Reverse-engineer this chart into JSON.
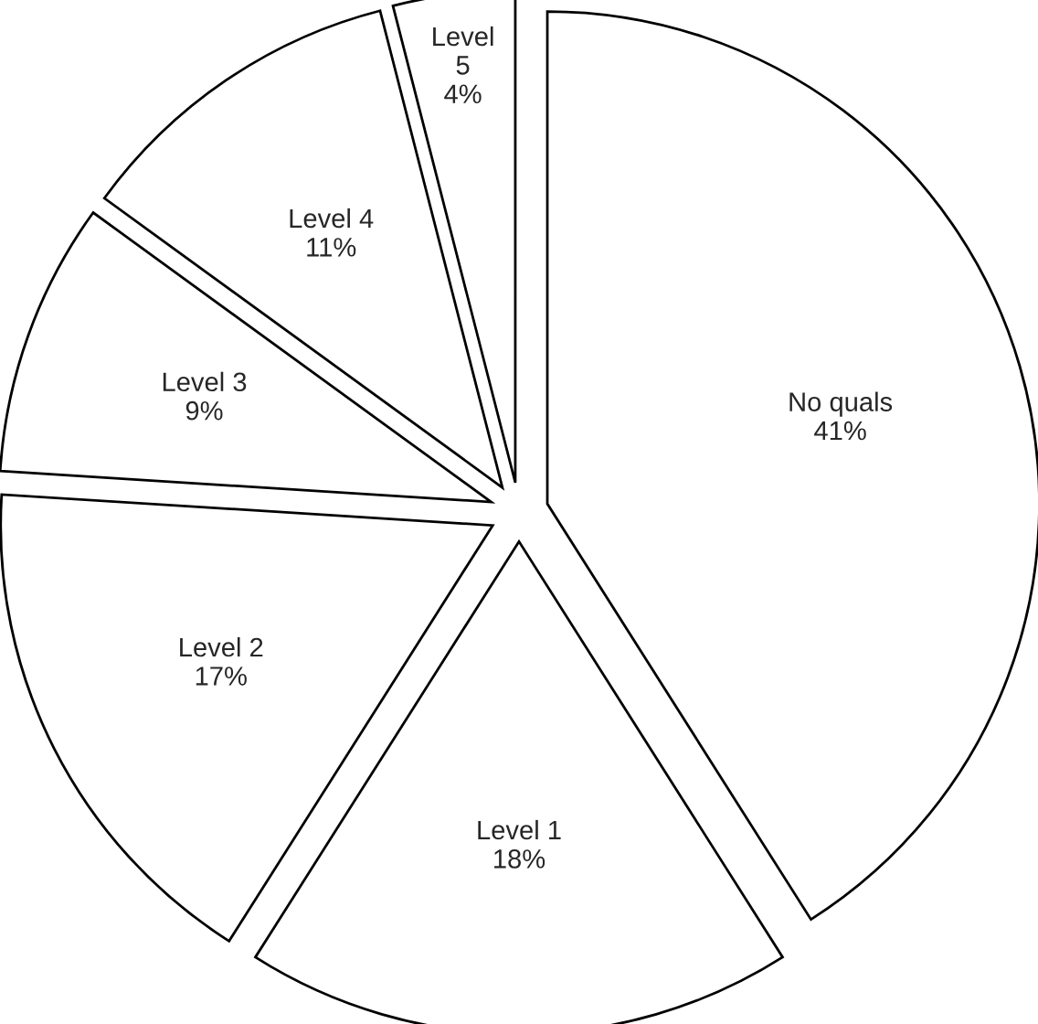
{
  "chart_data": {
    "type": "pie",
    "categories": [
      "No quals",
      "Level 1",
      "Level 2",
      "Level 3",
      "Level 4",
      "Level 5"
    ],
    "values": [
      41,
      18,
      17,
      9,
      11,
      4
    ],
    "value_labels": [
      "41%",
      "18%",
      "17%",
      "9%",
      "11%",
      "4%"
    ],
    "colors": [
      "#ffffff",
      "#ffffff",
      "#ffffff",
      "#ffffff",
      "#ffffff",
      "#ffffff"
    ]
  }
}
